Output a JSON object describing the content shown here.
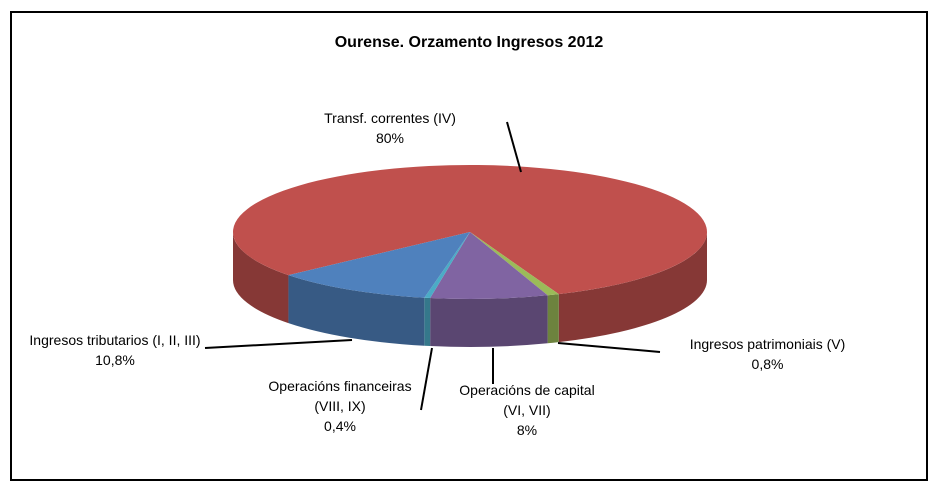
{
  "chart_data": {
    "type": "pie3d",
    "title": "Ourense. Orzamento Ingresos 2012",
    "categories": [
      "Transf. correntes (IV)",
      "Ingresos patrimoniais (V)",
      "Operacións de capital (VI, VII)",
      "Operacións financeiras (VIII, IX)",
      "Ingresos tributarios (I, II, III)"
    ],
    "values": [
      80,
      0.8,
      8,
      0.4,
      10.8
    ],
    "value_labels": [
      "80%",
      "0,8%",
      "8%",
      "0,4%",
      "10,8%"
    ],
    "colors": [
      "#c0504d",
      "#9bbb59",
      "#8064a2",
      "#4bacc6",
      "#4f81bd"
    ]
  }
}
